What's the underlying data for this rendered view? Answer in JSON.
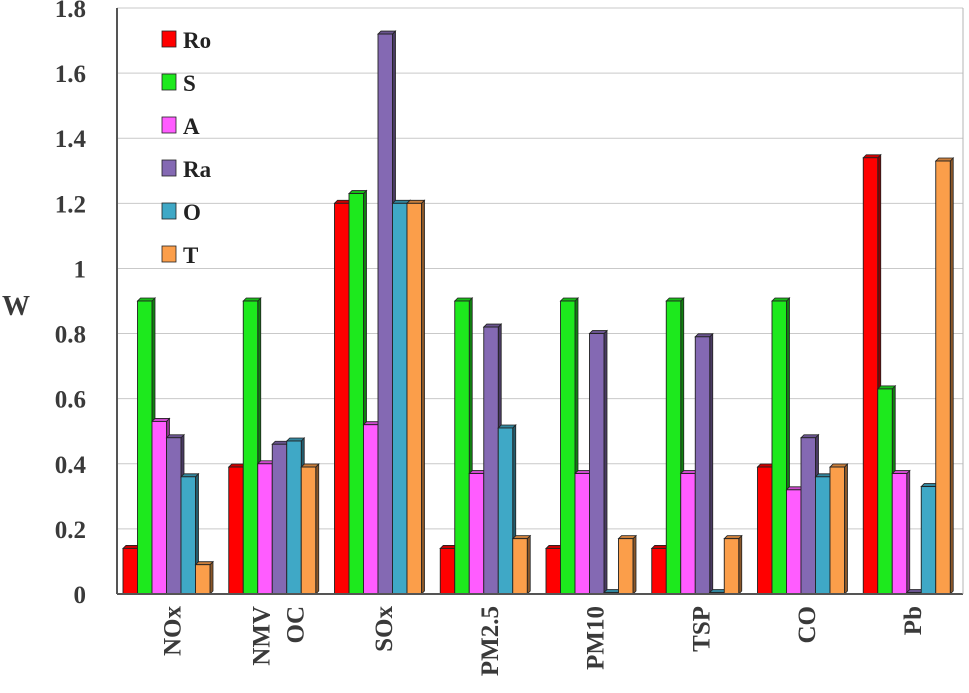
{
  "chart_data": {
    "type": "bar",
    "title": "",
    "xlabel": "",
    "ylabel": "W",
    "ylim": [
      0,
      1.8
    ],
    "yticks": [
      "0",
      "0.2",
      "0.4",
      "0.6",
      "0.8",
      "1",
      "1.2",
      "1.4",
      "1.6",
      "1.8"
    ],
    "grid": "horizontal",
    "legend_position": "top-left",
    "categories": [
      "NOx",
      "NMVOC",
      "SOx",
      "PM2.5",
      "PM10",
      "TSP",
      "CO",
      "Pb"
    ],
    "category_label_lines": [
      [
        "NOx"
      ],
      [
        "NMV",
        "OC"
      ],
      [
        "SOx"
      ],
      [
        "PM2.5"
      ],
      [
        "PM10"
      ],
      [
        "TSP"
      ],
      [
        "CO"
      ],
      [
        "Pb"
      ]
    ],
    "series": [
      {
        "name": "Ro",
        "color": "#ff0000",
        "values": [
          0.14,
          0.39,
          1.2,
          0.14,
          0.14,
          0.14,
          0.39,
          1.34
        ]
      },
      {
        "name": "S",
        "color": "#1de91d",
        "values": [
          0.9,
          0.9,
          1.23,
          0.9,
          0.9,
          0.9,
          0.9,
          0.63
        ]
      },
      {
        "name": "A",
        "color": "#ff5cff",
        "values": [
          0.53,
          0.4,
          0.52,
          0.37,
          0.37,
          0.37,
          0.32,
          0.37
        ]
      },
      {
        "name": "Ra",
        "color": "#8469b3",
        "values": [
          0.48,
          0.46,
          1.72,
          0.82,
          0.8,
          0.79,
          0.48,
          0
        ]
      },
      {
        "name": "O",
        "color": "#3fa8c6",
        "values": [
          0.36,
          0.47,
          1.2,
          0.51,
          0,
          0,
          0.36,
          0.33
        ]
      },
      {
        "name": "T",
        "color": "#fb9e4a",
        "values": [
          0.09,
          0.39,
          1.2,
          0.17,
          0.17,
          0.17,
          0.39,
          1.33
        ]
      }
    ]
  }
}
